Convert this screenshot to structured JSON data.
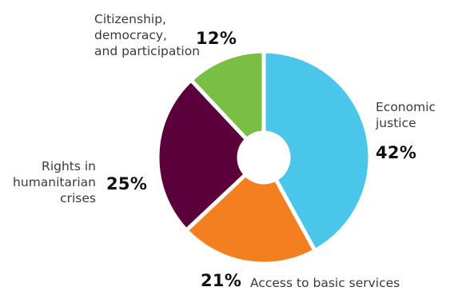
{
  "chart_data": {
    "type": "pie",
    "variant": "donut",
    "categories": [
      "Economic\njustice",
      "Access to basic services",
      "Rights in\nhumanitarian\ncrises",
      "Citizenship,\ndemocracy,\nand participation"
    ],
    "values": [
      42,
      21,
      25,
      12
    ],
    "value_labels": [
      "42%",
      "21%",
      "25%",
      "12%"
    ],
    "colors": [
      "#49c6ea",
      "#f47f21",
      "#5c003b",
      "#78bf44"
    ],
    "title": "",
    "legend": "none"
  }
}
